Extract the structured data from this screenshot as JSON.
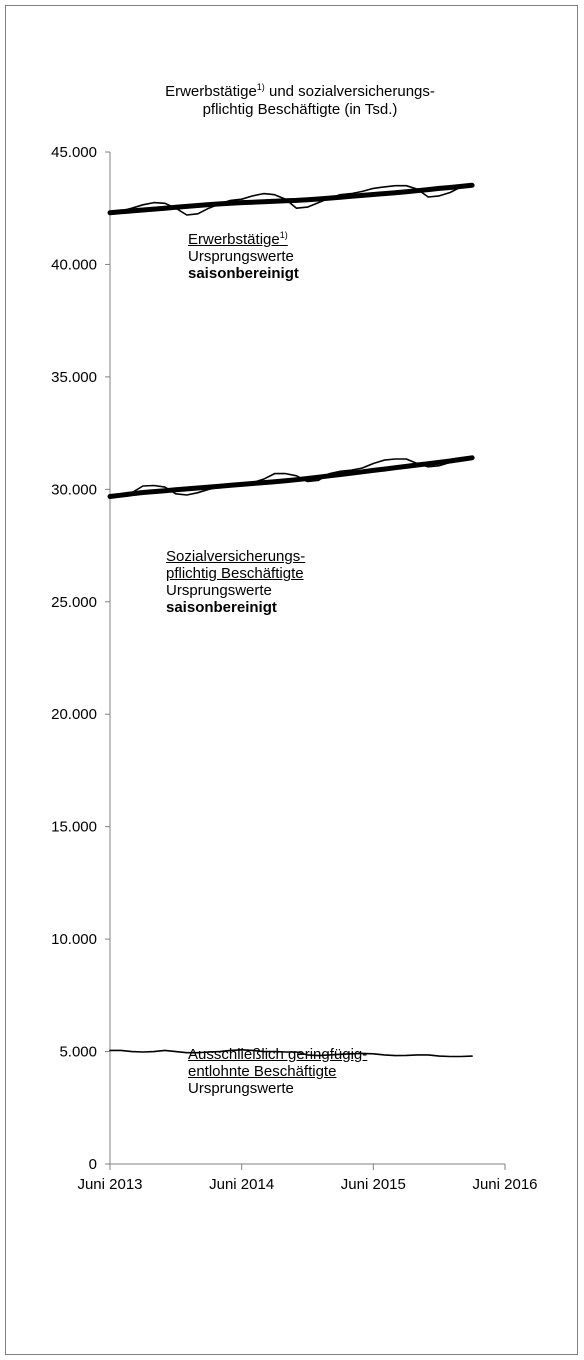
{
  "chart_data": {
    "type": "line",
    "title_part1": "Erwerbstätige",
    "title_sup": "1)",
    "title_part2": " und sozialversicherungs-",
    "title_line2": "pflichtig Beschäftigte (in Tsd.)",
    "x_tick_labels": [
      "Juni 2013",
      "Juni 2014",
      "Juni 2015",
      "Juni 2016"
    ],
    "x_tick_months": [
      0,
      12,
      24,
      36
    ],
    "y_tick_labels": [
      "0",
      "5.000",
      "10.000",
      "15.000",
      "20.000",
      "25.000",
      "30.000",
      "35.000",
      "40.000",
      "45.000"
    ],
    "y_tick_values": [
      0,
      5000,
      10000,
      15000,
      20000,
      25000,
      30000,
      35000,
      40000,
      45000
    ],
    "ylim": [
      0,
      45000
    ],
    "xlim_months": [
      0,
      36
    ],
    "x_start": "2013-06",
    "series": [
      {
        "name": "Erwerbstätige Ursprungswerte",
        "style": "thin",
        "values": [
          42250,
          42380,
          42500,
          42650,
          42750,
          42720,
          42500,
          42200,
          42250,
          42500,
          42700,
          42850,
          42900,
          43050,
          43150,
          43100,
          42900,
          42500,
          42550,
          42750,
          42950,
          43100,
          43150,
          43250,
          43380,
          43450,
          43500,
          43500,
          43350,
          43000,
          43050,
          43200,
          43450,
          43520
        ]
      },
      {
        "name": "Erwerbstätige saisonbereinigt",
        "style": "thick",
        "values": [
          42300,
          42340,
          42380,
          42420,
          42460,
          42500,
          42540,
          42580,
          42620,
          42660,
          42690,
          42720,
          42750,
          42770,
          42790,
          42810,
          42830,
          42850,
          42880,
          42910,
          42950,
          42990,
          43030,
          43070,
          43110,
          43150,
          43190,
          43230,
          43280,
          43330,
          43380,
          43420,
          43470,
          43520
        ]
      },
      {
        "name": "Sozialversicherungspflichtig Beschäftigte Ursprungswerte",
        "style": "thin",
        "values": [
          29650,
          29750,
          29850,
          30150,
          30170,
          30100,
          29800,
          29750,
          29850,
          30000,
          30100,
          30200,
          30280,
          30300,
          30450,
          30700,
          30700,
          30600,
          30350,
          30400,
          30700,
          30800,
          30850,
          30950,
          31150,
          31300,
          31350,
          31350,
          31150,
          31000,
          31050,
          31200,
          31380,
          31450
        ]
      },
      {
        "name": "Sozialversicherungspflichtig Beschäftigte saisonbereinigt",
        "style": "thick",
        "values": [
          29680,
          29740,
          29800,
          29860,
          29900,
          29940,
          29980,
          30020,
          30060,
          30100,
          30140,
          30180,
          30220,
          30260,
          30300,
          30340,
          30380,
          30430,
          30480,
          30540,
          30600,
          30660,
          30720,
          30780,
          30840,
          30900,
          30960,
          31020,
          31080,
          31140,
          31200,
          31260,
          31330,
          31400
        ]
      },
      {
        "name": "Ausschließlich geringfügig entlohnte Beschäftigte Ursprungswerte",
        "style": "thin",
        "values": [
          5050,
          5050,
          5000,
          4980,
          5000,
          5050,
          5000,
          4950,
          4950,
          4980,
          5000,
          5050,
          5080,
          5050,
          5000,
          5000,
          4980,
          4980,
          4850,
          4820,
          4850,
          4880,
          4900,
          4920,
          4900,
          4850,
          4820,
          4830,
          4850,
          4850,
          4800,
          4780,
          4780,
          4800
        ]
      }
    ],
    "annotations": {
      "erwerb_label": "Erwerbstätige",
      "erwerb_sup": "1)",
      "erwerb_orig": "Ursprungswerte",
      "erwerb_sa": "saisonbereinigt",
      "svb_label1": "Sozialversicherungs-",
      "svb_label2": "pflichtig Beschäftigte",
      "svb_orig": "Ursprungswerte",
      "svb_sa": "saisonbereinigt",
      "gb_label1": "Ausschließlich geringfügig-",
      "gb_label2": "entlohnte Beschäftigte",
      "gb_orig": "Ursprungswerte"
    }
  }
}
